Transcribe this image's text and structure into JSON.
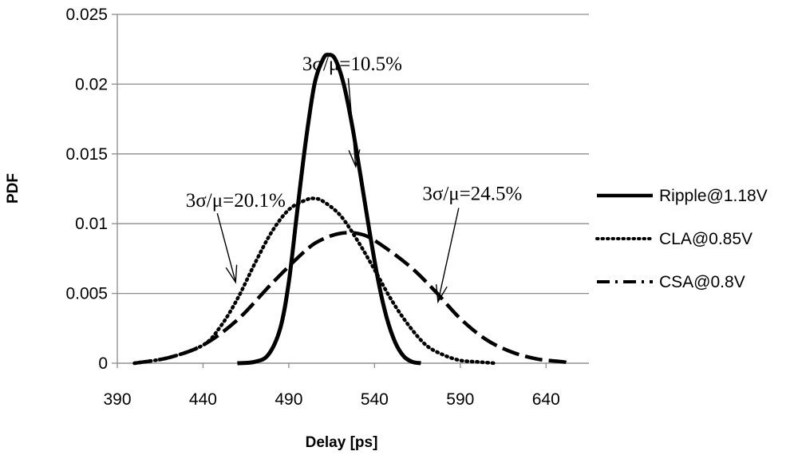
{
  "chart_data": {
    "type": "line",
    "title": "",
    "xlabel": "Delay [ps]",
    "ylabel": "PDF",
    "xlim": [
      390,
      665
    ],
    "ylim": [
      0,
      0.025
    ],
    "x_ticks": [
      "390",
      "440",
      "490",
      "540",
      "590",
      "640"
    ],
    "y_ticks": [
      "0",
      "0.005",
      "0.01",
      "0.015",
      "0.02",
      "0.025"
    ],
    "grid": "horizontal",
    "legend_position": "right",
    "series": [
      {
        "name": "Ripple@1.18V",
        "style": "solid",
        "points": [
          [
            460,
            0
          ],
          [
            470,
            0.0001
          ],
          [
            478,
            0.0006
          ],
          [
            485,
            0.0025
          ],
          [
            490,
            0.0058
          ],
          [
            495,
            0.011
          ],
          [
            500,
            0.016
          ],
          [
            505,
            0.02
          ],
          [
            510,
            0.0218
          ],
          [
            513,
            0.0221
          ],
          [
            517,
            0.0218
          ],
          [
            522,
            0.02
          ],
          [
            527,
            0.017
          ],
          [
            532,
            0.0133
          ],
          [
            537,
            0.0095
          ],
          [
            542,
            0.006
          ],
          [
            547,
            0.0033
          ],
          [
            552,
            0.0015
          ],
          [
            557,
            0.0005
          ],
          [
            562,
            0.0001
          ],
          [
            567,
            0
          ]
        ]
      },
      {
        "name": "CLA@0.85V",
        "style": "dotted",
        "points": [
          [
            400,
            0
          ],
          [
            420,
            0.0004
          ],
          [
            440,
            0.0013
          ],
          [
            450,
            0.0026
          ],
          [
            460,
            0.0046
          ],
          [
            470,
            0.0071
          ],
          [
            480,
            0.0094
          ],
          [
            490,
            0.011
          ],
          [
            500,
            0.0117
          ],
          [
            505,
            0.0118
          ],
          [
            510,
            0.0116
          ],
          [
            520,
            0.0106
          ],
          [
            530,
            0.0088
          ],
          [
            540,
            0.0067
          ],
          [
            550,
            0.0045
          ],
          [
            560,
            0.0027
          ],
          [
            570,
            0.0013
          ],
          [
            580,
            0.0006
          ],
          [
            590,
            0.0002
          ],
          [
            600,
            0.0001
          ],
          [
            610,
            0
          ]
        ]
      },
      {
        "name": "CSA@0.8V",
        "style": "dashed",
        "points": [
          [
            400,
            0
          ],
          [
            420,
            0.0004
          ],
          [
            440,
            0.0013
          ],
          [
            460,
            0.0031
          ],
          [
            480,
            0.0057
          ],
          [
            500,
            0.0081
          ],
          [
            510,
            0.0089
          ],
          [
            520,
            0.0093
          ],
          [
            530,
            0.0093
          ],
          [
            540,
            0.0088
          ],
          [
            560,
            0.007
          ],
          [
            575,
            0.0052
          ],
          [
            590,
            0.0032
          ],
          [
            605,
            0.0017
          ],
          [
            620,
            0.0008
          ],
          [
            635,
            0.0003
          ],
          [
            650,
            0.0001
          ],
          [
            652,
            0
          ]
        ]
      }
    ],
    "annotations": [
      {
        "text": "3σ/μ=10.5%",
        "x": 527,
        "y": 0.021,
        "arrow_to": [
          529,
          0.0141
        ]
      },
      {
        "text": "3σ/μ=20.1%",
        "x": 459,
        "y": 0.0112,
        "arrow_to": [
          459,
          0.0058
        ]
      },
      {
        "text": "3σ/μ=24.5%",
        "x": 597,
        "y": 0.0117,
        "arrow_to": [
          577,
          0.0044
        ]
      }
    ]
  }
}
